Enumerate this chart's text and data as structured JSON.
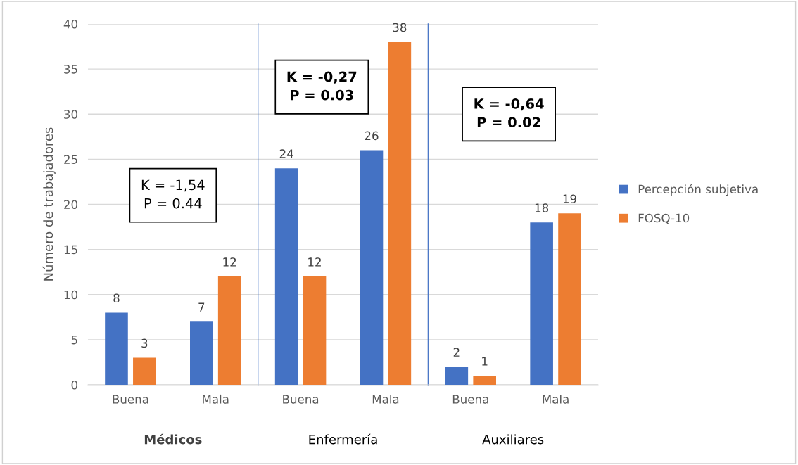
{
  "chart_data": {
    "type": "bar",
    "categories": [
      "Buena",
      "Mala",
      "Buena",
      "Mala",
      "Buena",
      "Mala"
    ],
    "series": [
      {
        "name": "Percepción subjetiva",
        "color": "#4472c4",
        "values": [
          8,
          7,
          24,
          26,
          2,
          18
        ]
      },
      {
        "name": "FOSQ-10",
        "color": "#ed7d31",
        "values": [
          3,
          12,
          12,
          38,
          1,
          19
        ]
      }
    ],
    "ylabel": "Número de trabajadores",
    "ylim": [
      0,
      40
    ],
    "yticks": [
      0,
      5,
      10,
      15,
      20,
      25,
      30,
      35,
      40
    ],
    "grid": "y",
    "legend": "right",
    "data_labels": true,
    "annotations": [
      "Médicos",
      "Enfermería",
      "Auxiliares",
      "K = -1,54\nP = 0.44",
      "K = -0,27\nP = 0.03",
      "K = -0,64\nP = 0.02"
    ]
  }
}
